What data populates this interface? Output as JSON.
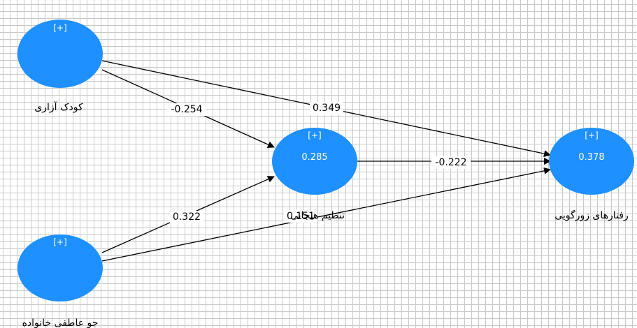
{
  "colors": {
    "node_fill": "#1e90ff",
    "edge": "#000000",
    "grid": "#c9c9c9"
  },
  "nodes": [
    {
      "id": "n1",
      "label": "کودک آزاری",
      "marker": "[+]",
      "value": ""
    },
    {
      "id": "n2",
      "label": "جو عاطفی خانواده",
      "marker": "[+]",
      "value": ""
    },
    {
      "id": "n3",
      "label": "تنظیم هیجانی",
      "marker": "[+]",
      "value": "0.285"
    },
    {
      "id": "n4",
      "label": "رفتارهای زورگویی",
      "marker": "[+]",
      "value": "0.378"
    }
  ],
  "edges": [
    {
      "from": "n1",
      "to": "n3",
      "coefficient": "-0.254"
    },
    {
      "from": "n1",
      "to": "n4",
      "coefficient": "0.349"
    },
    {
      "from": "n2",
      "to": "n3",
      "coefficient": "0.322"
    },
    {
      "from": "n2",
      "to": "n4",
      "coefficient": "0.151"
    },
    {
      "from": "n3",
      "to": "n4",
      "coefficient": "-0.222"
    }
  ]
}
